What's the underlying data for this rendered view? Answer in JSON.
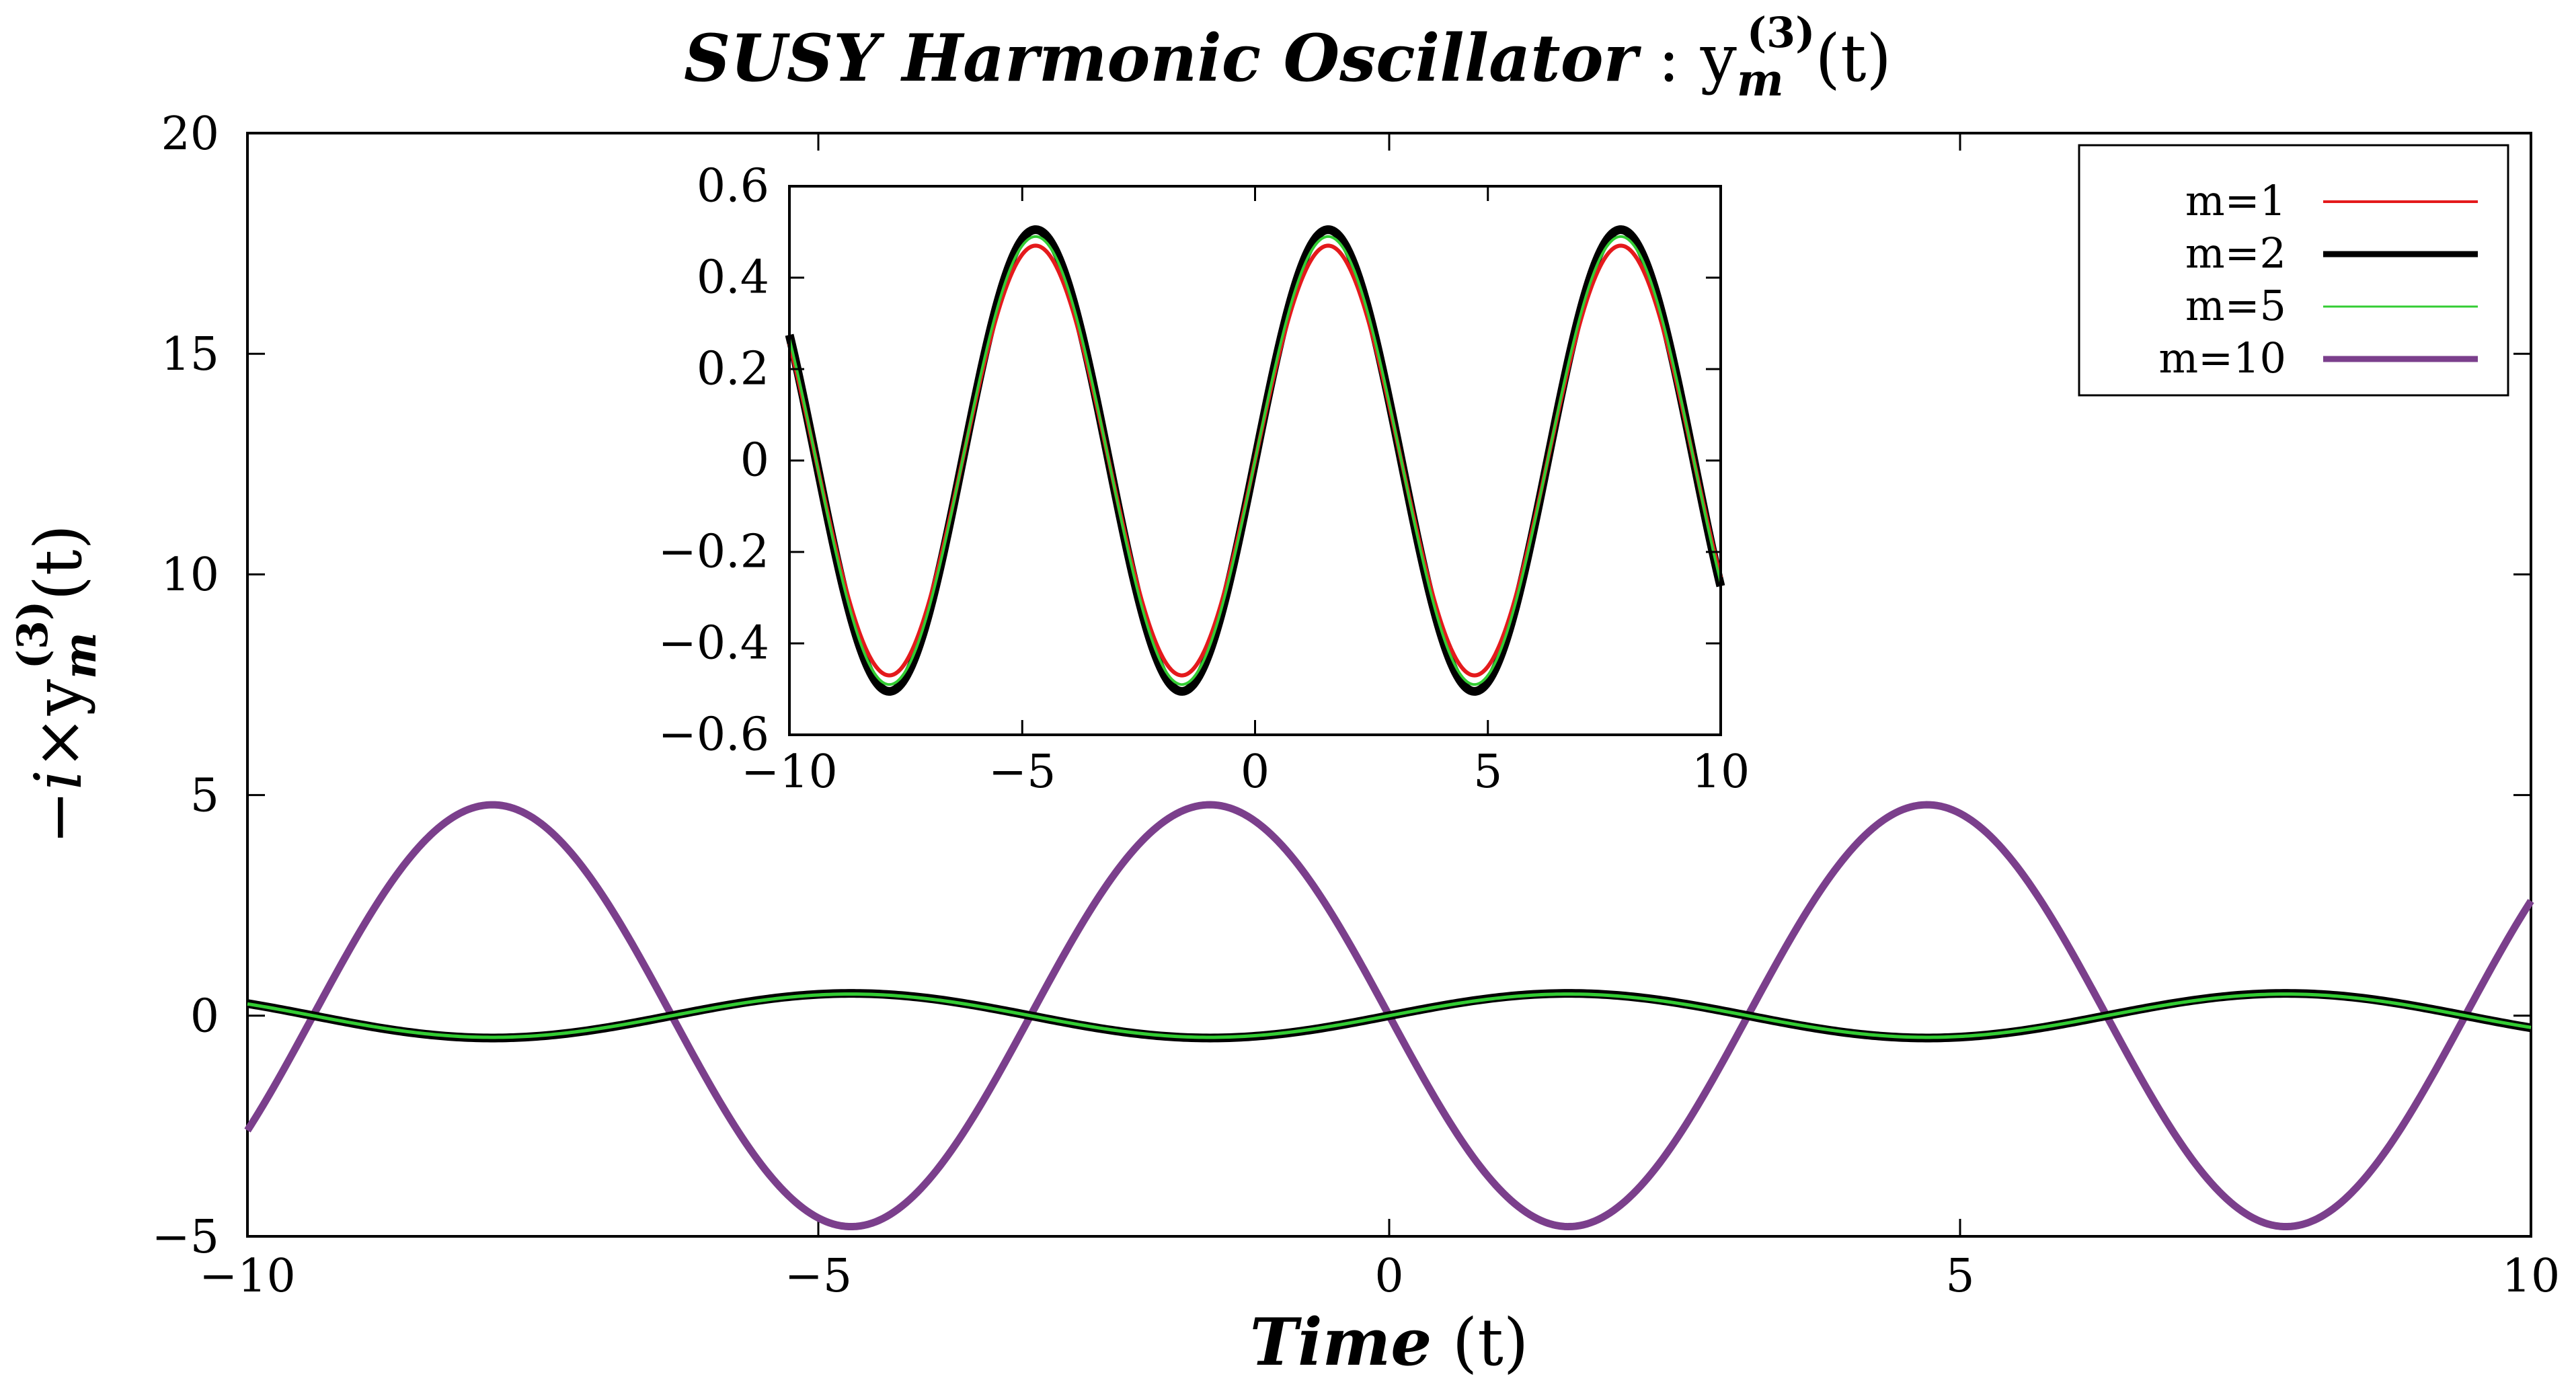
{
  "chart_data": [
    {
      "id": "main",
      "type": "line",
      "title": "SUSY Harmonic Oscillator : y_m^(3)(t)",
      "title_parts": {
        "italic": "SUSY Harmonic Oscillator",
        "plain": " : y",
        "sup": "(3)",
        "sub": "m",
        "tail": "(t)"
      },
      "xlabel": "Time (t)",
      "xlabel_parts": {
        "italic": "Time",
        "plain": " (t)"
      },
      "ylabel": "−i×y_m^(3)(t)",
      "ylabel_parts": {
        "prefix_italic": "−i",
        "times": "×y",
        "sup": "(3)",
        "sub": "m",
        "tail": "(t)"
      },
      "xlim": [
        -10,
        10
      ],
      "ylim": [
        -5,
        20
      ],
      "xticks": [
        -10,
        -5,
        0,
        5,
        10
      ],
      "xtick_labels": [
        "−10",
        "−5",
        "0",
        "5",
        "10"
      ],
      "yticks": [
        -5,
        0,
        5,
        10,
        15,
        20
      ],
      "ytick_labels": [
        "−5",
        "0",
        "5",
        "10",
        "15",
        "20"
      ],
      "grid": false,
      "legend_position": "top-right",
      "series": [
        {
          "name": "m=1",
          "color": "#e41a1c",
          "amplitude": 0.47,
          "frequency": 1,
          "phase": 0
        },
        {
          "name": "m=2",
          "color": "#000000",
          "amplitude": 0.505,
          "frequency": 1,
          "phase": 0
        },
        {
          "name": "m=5",
          "color": "#33cc33",
          "amplitude": 0.49,
          "frequency": 1,
          "phase": 0
        },
        {
          "name": "m=10",
          "color": "#7b3f8c",
          "amplitude": -4.78,
          "frequency": 1,
          "phase": 0
        }
      ]
    },
    {
      "id": "inset",
      "type": "line",
      "xlim": [
        -10,
        10
      ],
      "ylim": [
        -0.6,
        0.6
      ],
      "xticks": [
        -10,
        -5,
        0,
        5,
        10
      ],
      "xtick_labels": [
        "−10",
        "−5",
        "0",
        "5",
        "10"
      ],
      "yticks": [
        -0.6,
        -0.4,
        -0.2,
        0,
        0.2,
        0.4,
        0.6
      ],
      "ytick_labels": [
        "−0.6",
        "−0.4",
        "−0.2",
        "0",
        "0.2",
        "0.4",
        "0.6"
      ],
      "grid": false,
      "series": [
        {
          "name": "m=1",
          "color": "#e41a1c",
          "amplitude": 0.47,
          "frequency": 1,
          "phase": 0
        },
        {
          "name": "m=2",
          "color": "#000000",
          "amplitude": 0.505,
          "frequency": 1,
          "phase": 0
        },
        {
          "name": "m=5",
          "color": "#33cc33",
          "amplitude": 0.49,
          "frequency": 1,
          "phase": 0
        }
      ]
    }
  ],
  "legend": {
    "entries": [
      {
        "label": "m=1",
        "color": "#e41a1c"
      },
      {
        "label": "m=2",
        "color": "#000000"
      },
      {
        "label": "m=5",
        "color": "#33cc33"
      },
      {
        "label": "m=10",
        "color": "#7b3f8c"
      }
    ]
  }
}
